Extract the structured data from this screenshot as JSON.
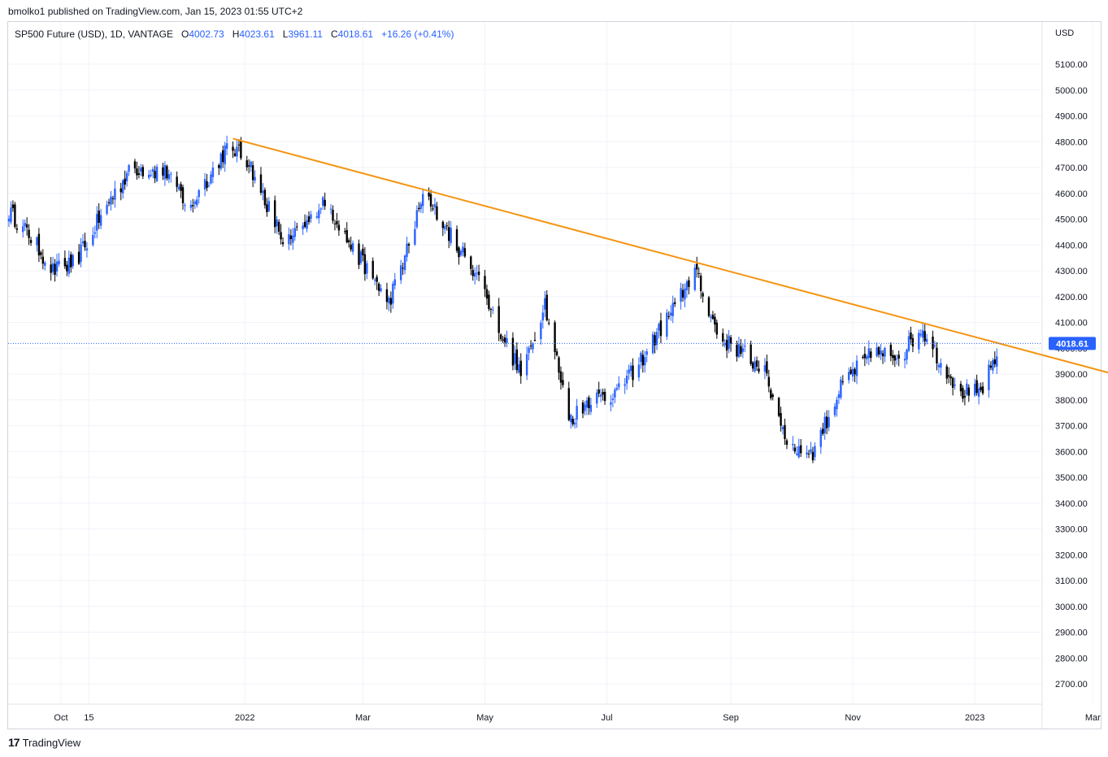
{
  "header": {
    "publisher_text": "bmolko1 published on TradingView.com, Jan 15, 2023 01:55 UTC+2"
  },
  "legend": {
    "symbol": "SP500 Future (USD), 1D, VANTAGE",
    "open_label": "O",
    "open": "4002.73",
    "high_label": "H",
    "high": "4023.61",
    "low_label": "L",
    "low": "3961.11",
    "close_label": "C",
    "close": "4018.61",
    "change": "+16.26 (+0.41%)"
  },
  "axis": {
    "currency": "USD",
    "last_price": "4018.61"
  },
  "footer": {
    "logo": "17",
    "brand": "TradingView"
  },
  "colors": {
    "up": "#2962ff",
    "down": "#000000",
    "trendline": "#f59512",
    "price_line": "#2962ff",
    "grid": "#f0f3fa"
  },
  "chart_data": {
    "type": "candlestick",
    "title": "SP500 Future (USD), 1D, VANTAGE",
    "yticks": [
      2700,
      2800,
      2900,
      3000,
      3100,
      3200,
      3300,
      3400,
      3500,
      3600,
      3700,
      3800,
      3900,
      4000,
      4100,
      4200,
      4300,
      4400,
      4500,
      4600,
      4700,
      4800,
      4900,
      5000,
      5100
    ],
    "ytick_labels": [
      "2700.00",
      "2800.00",
      "2900.00",
      "3000.00",
      "3100.00",
      "3200.00",
      "3300.00",
      "3400.00",
      "3500.00",
      "3600.00",
      "3700.00",
      "3800.00",
      "3900.00",
      "4000.00",
      "4100.00",
      "4200.00",
      "4300.00",
      "4400.00",
      "4500.00",
      "4600.00",
      "4700.00",
      "4800.00",
      "4900.00",
      "5000.00",
      "5100.00"
    ],
    "ylim": [
      2620,
      5210
    ],
    "x_range_days": [
      0,
      535
    ],
    "xticks": [
      {
        "label": "Oct",
        "day": 26
      },
      {
        "label": "15",
        "day": 40
      },
      {
        "label": "2022",
        "day": 118
      },
      {
        "label": "Mar",
        "day": 177
      },
      {
        "label": "May",
        "day": 238
      },
      {
        "label": "Jul",
        "day": 299
      },
      {
        "label": "Sep",
        "day": 361
      },
      {
        "label": "Nov",
        "day": 422
      },
      {
        "label": "2023",
        "day": 483
      },
      {
        "label": "Mar",
        "day": 542
      }
    ],
    "trendline": {
      "start": {
        "day": 112,
        "price": 4812
      },
      "end": {
        "day": 563,
        "price": 3878
      }
    },
    "last_price": 4018.61,
    "key_points": [
      {
        "day": 0,
        "price": 4530
      },
      {
        "day": 12,
        "price": 4420
      },
      {
        "day": 22,
        "price": 4300
      },
      {
        "day": 33,
        "price": 4330
      },
      {
        "day": 50,
        "price": 4570
      },
      {
        "day": 62,
        "price": 4700
      },
      {
        "day": 80,
        "price": 4680
      },
      {
        "day": 90,
        "price": 4540
      },
      {
        "day": 110,
        "price": 4790
      },
      {
        "day": 120,
        "price": 4720
      },
      {
        "day": 138,
        "price": 4400
      },
      {
        "day": 148,
        "price": 4470
      },
      {
        "day": 158,
        "price": 4580
      },
      {
        "day": 172,
        "price": 4380
      },
      {
        "day": 180,
        "price": 4300
      },
      {
        "day": 190,
        "price": 4180
      },
      {
        "day": 200,
        "price": 4400
      },
      {
        "day": 208,
        "price": 4610
      },
      {
        "day": 222,
        "price": 4420
      },
      {
        "day": 234,
        "price": 4290
      },
      {
        "day": 245,
        "price": 4080
      },
      {
        "day": 256,
        "price": 3900
      },
      {
        "day": 268,
        "price": 4180
      },
      {
        "day": 280,
        "price": 3720
      },
      {
        "day": 290,
        "price": 3800
      },
      {
        "day": 305,
        "price": 3830
      },
      {
        "day": 320,
        "price": 4000
      },
      {
        "day": 334,
        "price": 4180
      },
      {
        "day": 343,
        "price": 4300
      },
      {
        "day": 355,
        "price": 4040
      },
      {
        "day": 368,
        "price": 3980
      },
      {
        "day": 378,
        "price": 3900
      },
      {
        "day": 390,
        "price": 3620
      },
      {
        "day": 402,
        "price": 3600
      },
      {
        "day": 418,
        "price": 3880
      },
      {
        "day": 432,
        "price": 3980
      },
      {
        "day": 446,
        "price": 3970
      },
      {
        "day": 456,
        "price": 4080
      },
      {
        "day": 466,
        "price": 3950
      },
      {
        "day": 476,
        "price": 3830
      },
      {
        "day": 486,
        "price": 3830
      },
      {
        "day": 496,
        "price": 4018
      }
    ]
  }
}
